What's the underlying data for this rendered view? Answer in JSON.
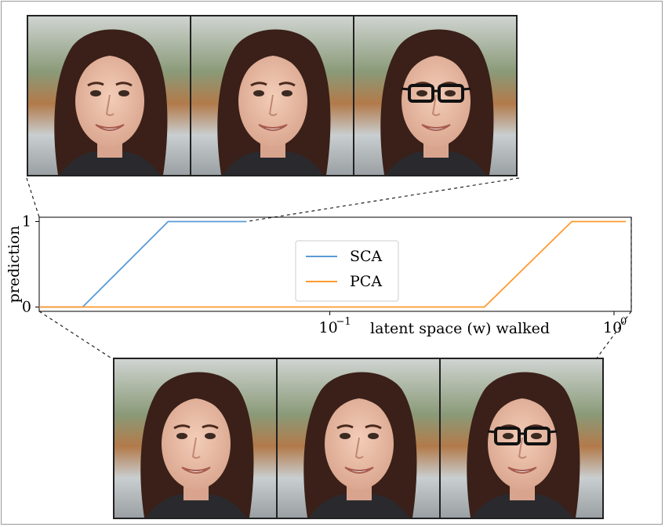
{
  "figure": {
    "top_images": [
      {
        "subject": "woman-portrait",
        "glasses": false
      },
      {
        "subject": "woman-portrait",
        "glasses": false
      },
      {
        "subject": "woman-portrait",
        "glasses": true
      }
    ],
    "bottom_images": [
      {
        "subject": "woman-portrait",
        "glasses": false
      },
      {
        "subject": "woman-portrait",
        "glasses": false
      },
      {
        "subject": "woman-portrait",
        "glasses": true
      }
    ]
  },
  "chart_data": {
    "type": "line",
    "title": "",
    "xlabel": "latent space (w) walked",
    "ylabel": "prediction",
    "xscale": "log",
    "xlim": [
      0.0095,
      1.15
    ],
    "ylim": [
      -0.05,
      1.05
    ],
    "xticks": [
      {
        "value": 0.1,
        "label": "10",
        "exp": "−1"
      },
      {
        "value": 1,
        "label": "10",
        "exp": "0"
      }
    ],
    "yticks": [
      {
        "value": 0,
        "label": "0"
      },
      {
        "value": 1,
        "label": "1"
      }
    ],
    "legend_position": "center",
    "grid": false,
    "series": [
      {
        "name": "SCA",
        "color": "#5b9bd5",
        "x": [
          0.0095,
          0.0135,
          0.027,
          0.051
        ],
        "y": [
          0,
          0,
          1,
          1
        ]
      },
      {
        "name": "PCA",
        "color": "#ff9a2e",
        "x": [
          0.0095,
          0.35,
          0.71,
          1.1
        ],
        "y": [
          0,
          0,
          1,
          1
        ]
      }
    ]
  }
}
